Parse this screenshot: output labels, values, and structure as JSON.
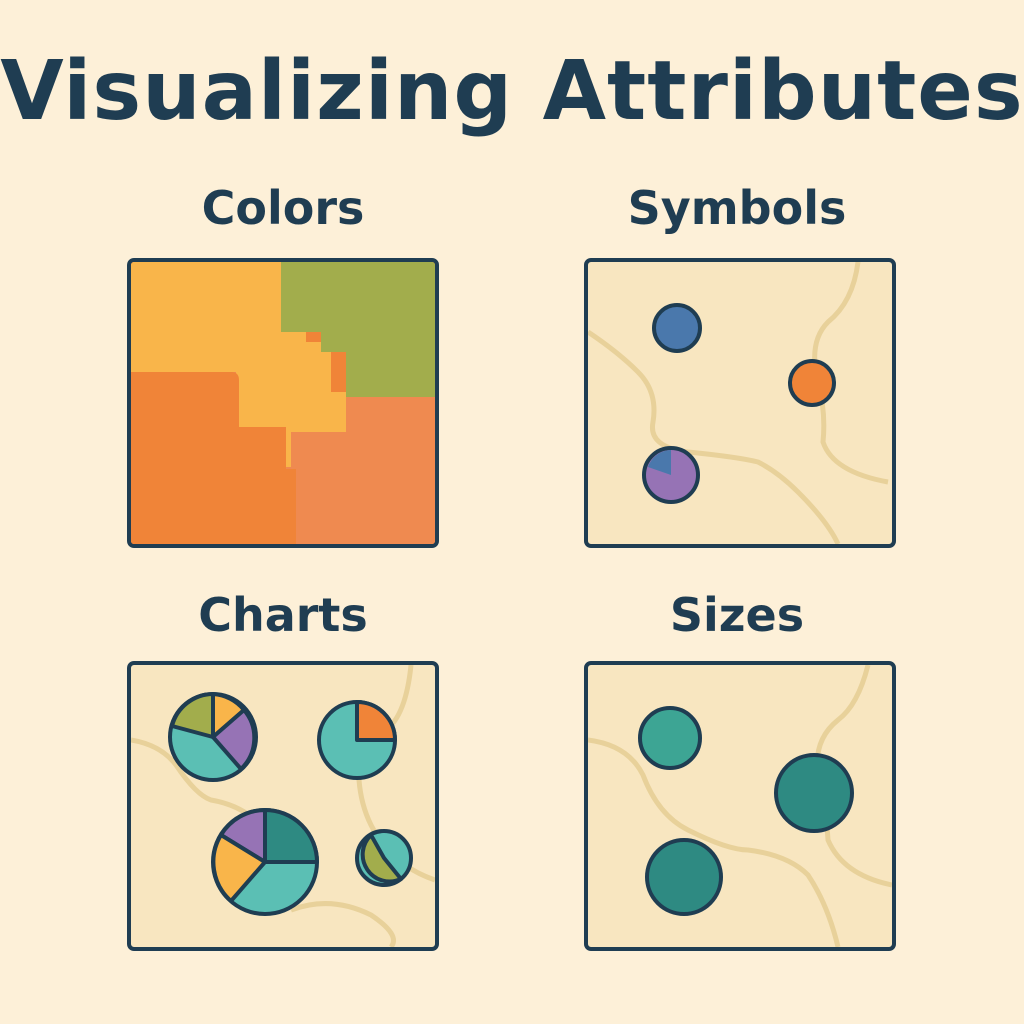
{
  "title": "Visualizing Attributes",
  "panels": [
    {
      "key": "colors",
      "label": "Colors",
      "icon": "choropleth-map-icon"
    },
    {
      "key": "symbols",
      "label": "Symbols",
      "icon": "point-symbol-map-icon"
    },
    {
      "key": "charts",
      "label": "Charts",
      "icon": "pie-chart-map-icon"
    },
    {
      "key": "sizes",
      "label": "Sizes",
      "icon": "proportional-symbol-map-icon"
    }
  ],
  "colors": {
    "outline": "#1f3d52",
    "background": "#fdf0d8",
    "map_fill": "#f8e6c0",
    "map_line": "#e8d19a",
    "yellow": "#f9b54a",
    "olive": "#a2ad4c",
    "orange": "#f08438",
    "salmon": "#ef8a50",
    "blue": "#4a78ac",
    "purple": "#9673b5",
    "teal": "#5bbfb4",
    "green_teal": "#3da594",
    "dark_teal": "#2e8a82"
  }
}
